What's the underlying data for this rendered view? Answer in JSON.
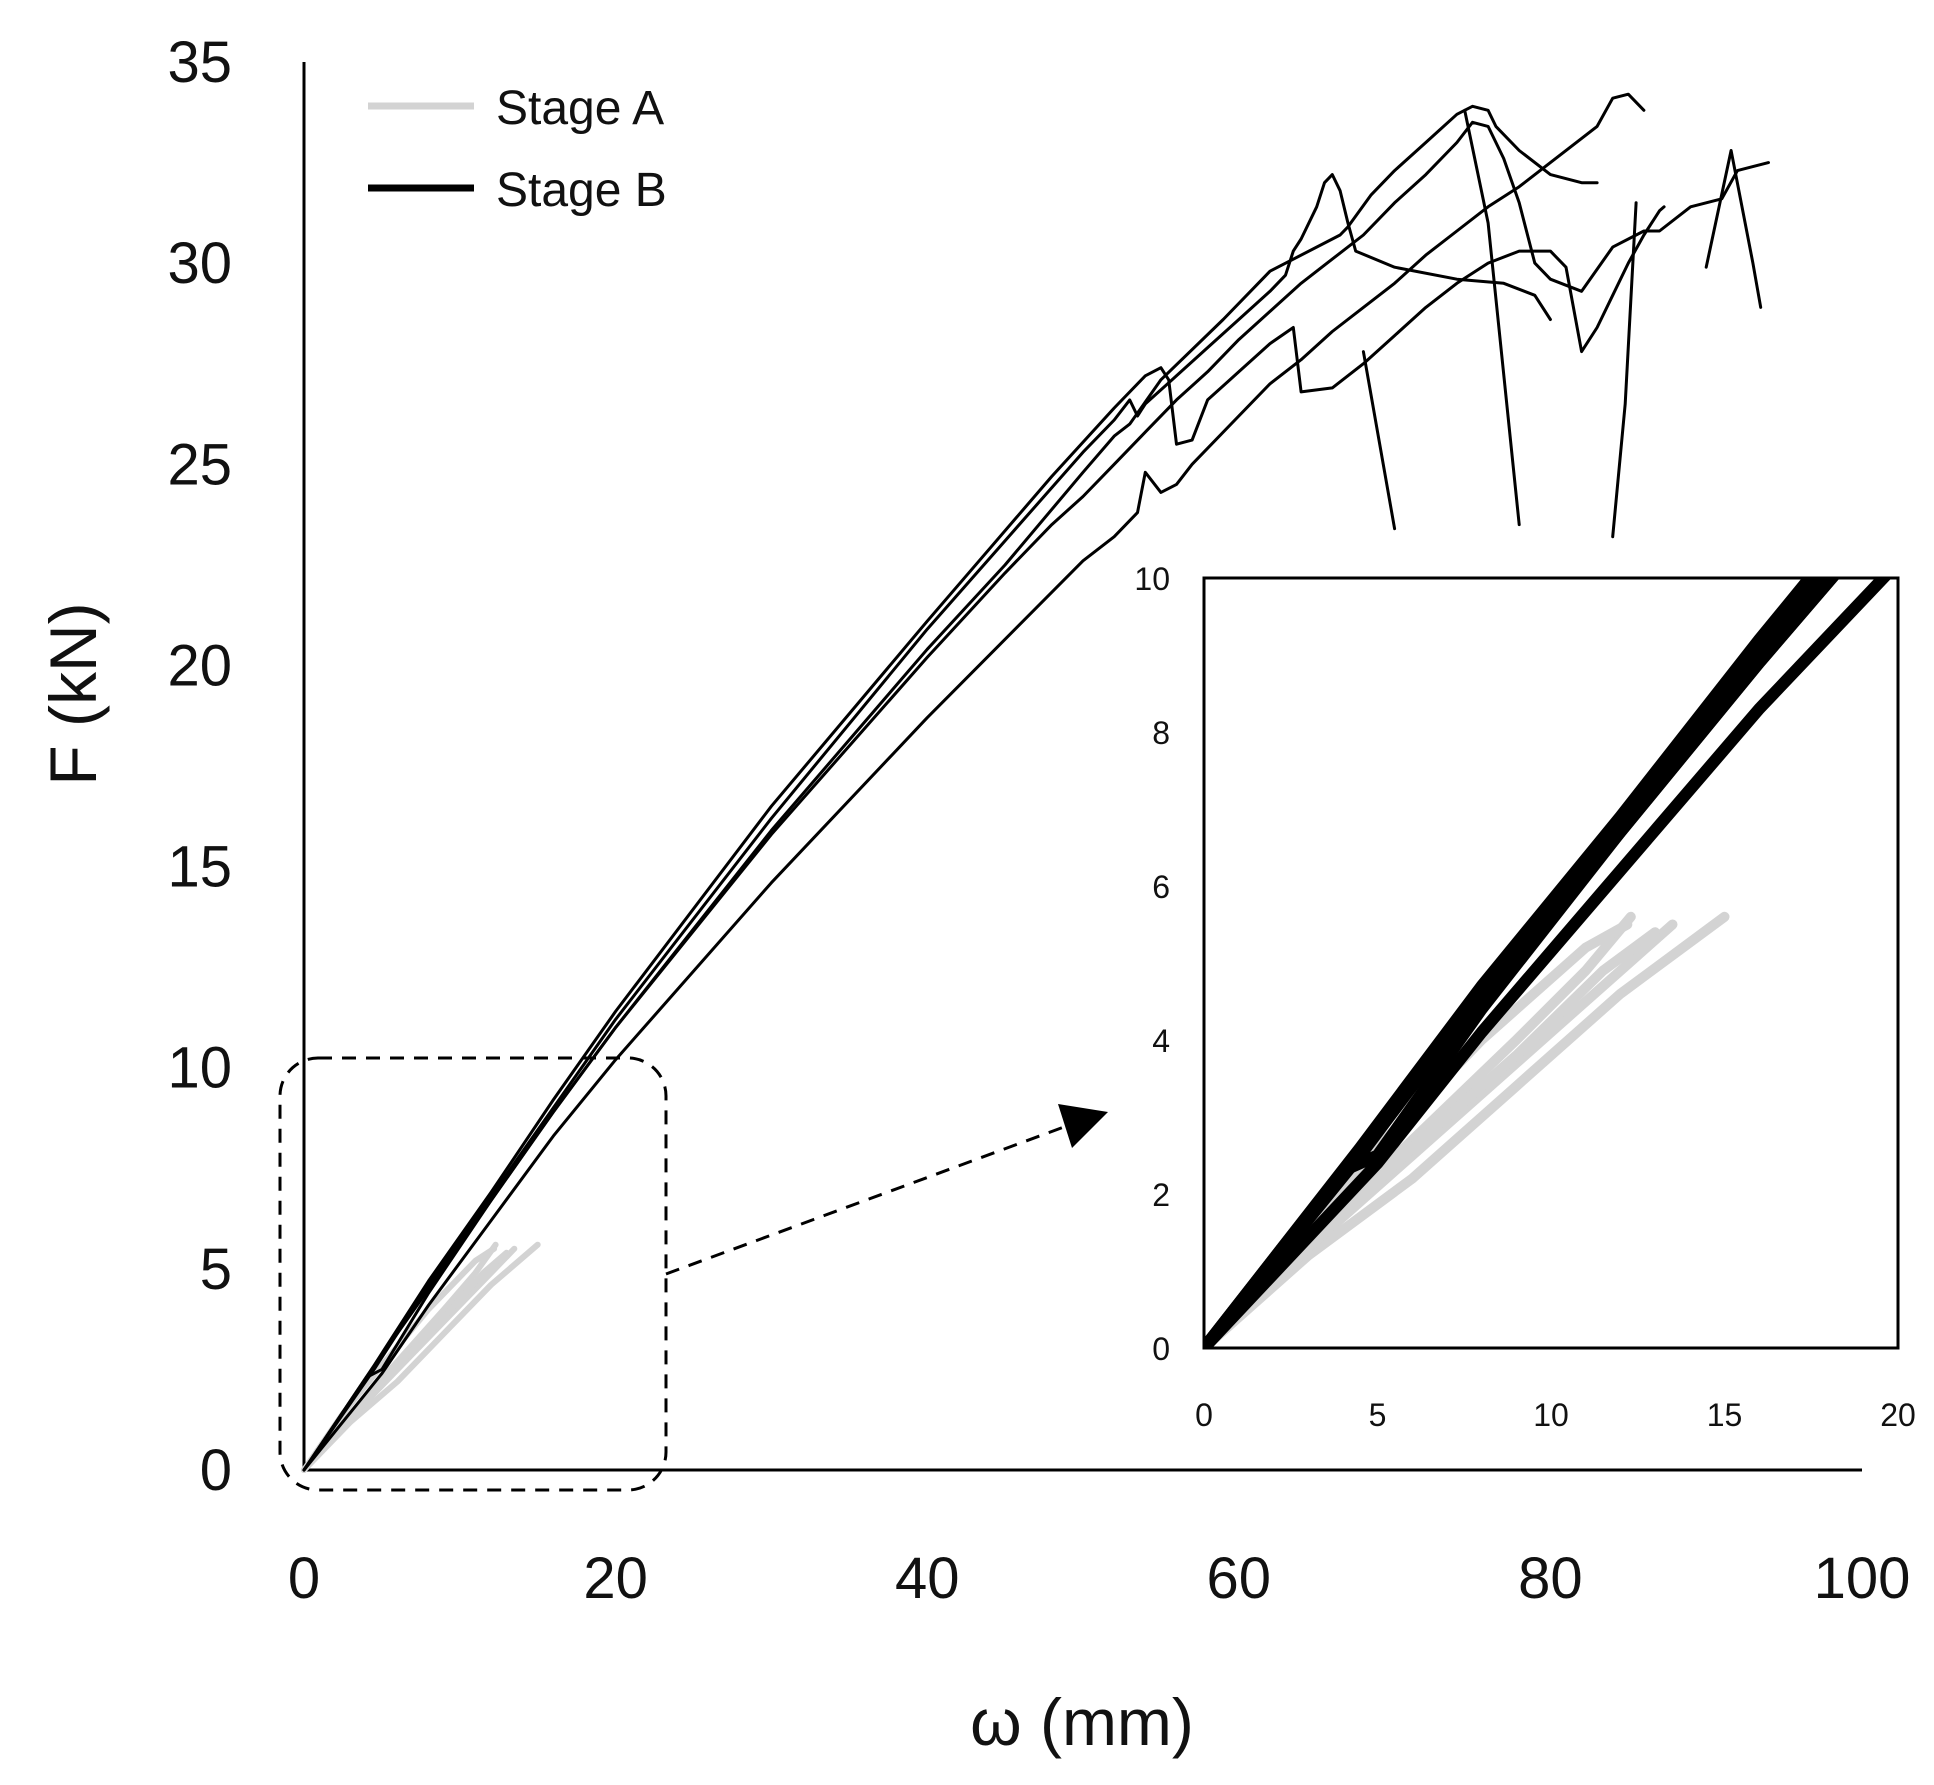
{
  "chart_data": {
    "type": "line",
    "title": "",
    "xlabel": "ω (mm)",
    "ylabel": "F (kN)",
    "xlim": [
      0,
      100
    ],
    "ylim": [
      0,
      35
    ],
    "x_ticks": [
      "0",
      "20",
      "40",
      "60",
      "80",
      "100"
    ],
    "y_ticks": [
      "0",
      "5",
      "10",
      "15",
      "20",
      "25",
      "30",
      "35"
    ],
    "grid": false,
    "legend_position": "top-left",
    "legend": [
      {
        "label": "Stage A",
        "color": "#d3d3d3"
      },
      {
        "label": "Stage B",
        "color": "#000000"
      }
    ],
    "series": [
      {
        "name": "Stage A",
        "color": "#d3d3d3",
        "curves": [
          [
            [
              0,
              0
            ],
            [
              3,
              1.2
            ],
            [
              6,
              2.2
            ],
            [
              9,
              3.4
            ],
            [
              12,
              4.6
            ],
            [
              15,
              5.6
            ]
          ],
          [
            [
              0,
              0
            ],
            [
              3,
              1.3
            ],
            [
              6,
              2.5
            ],
            [
              9,
              3.7
            ],
            [
              12,
              4.9
            ],
            [
              13.5,
              5.5
            ]
          ],
          [
            [
              0,
              0
            ],
            [
              3,
              1.4
            ],
            [
              6,
              2.7
            ],
            [
              9,
              4.0
            ],
            [
              11,
              4.9
            ],
            [
              12.3,
              5.6
            ]
          ],
          [
            [
              0,
              0
            ],
            [
              2.5,
              1.4
            ],
            [
              5,
              2.6
            ],
            [
              8,
              4.0
            ],
            [
              11,
              5.2
            ],
            [
              12.2,
              5.5
            ]
          ],
          [
            [
              0,
              0
            ],
            [
              3,
              1.3
            ],
            [
              6,
              2.6
            ],
            [
              9,
              3.8
            ],
            [
              11.5,
              4.9
            ],
            [
              13,
              5.4
            ]
          ]
        ]
      },
      {
        "name": "Stage B",
        "color": "#000000",
        "curves": [
          [
            [
              0,
              0
            ],
            [
              4,
              2.3
            ],
            [
              5,
              2.5
            ],
            [
              8,
              4.4
            ],
            [
              12,
              6.7
            ],
            [
              16,
              8.9
            ],
            [
              20,
              11.0
            ],
            [
              30,
              15.9
            ],
            [
              40,
              20.4
            ],
            [
              45,
              22.5
            ],
            [
              50,
              24.8
            ],
            [
              52,
              25.7
            ],
            [
              53,
              26.0
            ],
            [
              55,
              27.1
            ],
            [
              59,
              28.6
            ],
            [
              62,
              29.8
            ],
            [
              66.5,
              30.7
            ],
            [
              67,
              30.9
            ],
            [
              68.5,
              31.7
            ],
            [
              70,
              32.3
            ],
            [
              72,
              33.0
            ],
            [
              74,
              33.7
            ],
            [
              75,
              33.9
            ],
            [
              76,
              33.8
            ],
            [
              76.5,
              33.4
            ],
            [
              78,
              32.8
            ],
            [
              80,
              32.2
            ],
            [
              82,
              32.0
            ],
            [
              83,
              32.0
            ]
          ],
          [
            [
              0,
              0
            ],
            [
              4.5,
              2.5
            ],
            [
              8,
              4.6
            ],
            [
              12,
              6.8
            ],
            [
              16,
              9.0
            ],
            [
              20,
              11.2
            ],
            [
              30,
              16.2
            ],
            [
              40,
              20.9
            ],
            [
              45,
              23.1
            ],
            [
              50,
              25.3
            ],
            [
              52,
              26.1
            ],
            [
              53,
              26.6
            ],
            [
              53.5,
              26.2
            ],
            [
              54,
              26.5
            ],
            [
              56,
              27.2
            ],
            [
              58,
              27.9
            ],
            [
              60,
              28.6
            ],
            [
              62,
              29.3
            ],
            [
              63,
              29.7
            ],
            [
              63.5,
              30.3
            ],
            [
              64,
              30.6
            ],
            [
              65,
              31.4
            ],
            [
              65.5,
              32.0
            ],
            [
              66,
              32.2
            ],
            [
              66.5,
              31.8
            ],
            [
              67,
              31.0
            ],
            [
              67.5,
              30.3
            ],
            [
              70,
              29.9
            ],
            [
              74,
              29.6
            ],
            [
              77,
              29.5
            ],
            [
              79,
              29.2
            ],
            [
              80,
              28.6
            ]
          ],
          [
            [
              0,
              0
            ],
            [
              4,
              2.3
            ],
            [
              8,
              4.5
            ],
            [
              12,
              6.7
            ],
            [
              16,
              8.9
            ],
            [
              20,
              11.0
            ],
            [
              30,
              15.8
            ],
            [
              40,
              20.2
            ],
            [
              45,
              22.3
            ],
            [
              48,
              23.5
            ],
            [
              50,
              24.2
            ],
            [
              52,
              25.0
            ],
            [
              54,
              25.8
            ],
            [
              56,
              26.6
            ],
            [
              58,
              27.3
            ],
            [
              60,
              28.1
            ],
            [
              62,
              28.8
            ],
            [
              64,
              29.5
            ],
            [
              66,
              30.1
            ],
            [
              68,
              30.7
            ],
            [
              70,
              31.5
            ],
            [
              72,
              32.2
            ],
            [
              74,
              33.0
            ],
            [
              75,
              33.5
            ],
            [
              76,
              33.4
            ],
            [
              77,
              32.6
            ],
            [
              78,
              31.5
            ],
            [
              79,
              30.0
            ],
            [
              80,
              29.6
            ],
            [
              82,
              29.3
            ],
            [
              84,
              30.4
            ],
            [
              86,
              30.8
            ],
            [
              87,
              30.8
            ],
            [
              89,
              31.4
            ],
            [
              90,
              31.5
            ],
            [
              91,
              31.6
            ],
            [
              92,
              32.3
            ],
            [
              93,
              32.4
            ],
            [
              94,
              32.5
            ]
          ],
          [
            [
              0,
              0
            ],
            [
              5,
              2.4
            ],
            [
              8,
              4.1
            ],
            [
              12,
              6.2
            ],
            [
              16,
              8.3
            ],
            [
              20,
              10.2
            ],
            [
              30,
              14.6
            ],
            [
              40,
              18.7
            ],
            [
              50,
              22.6
            ],
            [
              52,
              23.2
            ],
            [
              53.5,
              23.8
            ],
            [
              54,
              24.8
            ],
            [
              55,
              24.3
            ],
            [
              56,
              24.5
            ],
            [
              57,
              25.0
            ],
            [
              60,
              26.2
            ],
            [
              62,
              27.0
            ],
            [
              64,
              27.6
            ],
            [
              66,
              28.3
            ],
            [
              68,
              28.9
            ],
            [
              70,
              29.5
            ],
            [
              72,
              30.2
            ],
            [
              74,
              30.8
            ],
            [
              76,
              31.4
            ],
            [
              78,
              31.9
            ],
            [
              80,
              32.5
            ],
            [
              82,
              33.1
            ],
            [
              83,
              33.4
            ],
            [
              84,
              34.1
            ],
            [
              85,
              34.2
            ],
            [
              86,
              33.8
            ]
          ],
          [
            [
              0,
              0
            ],
            [
              4.5,
              2.6
            ],
            [
              8,
              4.7
            ],
            [
              12,
              6.9
            ],
            [
              16,
              9.2
            ],
            [
              20,
              11.4
            ],
            [
              30,
              16.5
            ],
            [
              40,
              21.1
            ],
            [
              44,
              22.9
            ],
            [
              48,
              24.7
            ],
            [
              52,
              26.4
            ],
            [
              54,
              27.2
            ],
            [
              55,
              27.4
            ],
            [
              55.5,
              27.1
            ],
            [
              56,
              25.5
            ],
            [
              57,
              25.6
            ],
            [
              58,
              26.6
            ],
            [
              60,
              27.3
            ],
            [
              62,
              28.0
            ],
            [
              63.5,
              28.4
            ],
            [
              64,
              26.8
            ],
            [
              66,
              26.9
            ],
            [
              68,
              27.5
            ],
            [
              70,
              28.2
            ],
            [
              72,
              28.9
            ],
            [
              74,
              29.5
            ],
            [
              76,
              30.0
            ],
            [
              78,
              30.3
            ],
            [
              80,
              30.3
            ],
            [
              81,
              29.9
            ],
            [
              82,
              27.8
            ],
            [
              83,
              28.4
            ],
            [
              84,
              29.2
            ],
            [
              85,
              30.0
            ],
            [
              86,
              30.7
            ],
            [
              87,
              31.3
            ],
            [
              87.3,
              31.4
            ]
          ]
        ]
      },
      {
        "name": "Stage B failure drops",
        "color": "#000000",
        "curves": [
          [
            [
              74.5,
              33.8
            ],
            [
              76,
              31.0
            ],
            [
              78,
              23.5
            ]
          ],
          [
            [
              68,
              27.8
            ],
            [
              70,
              23.4
            ]
          ],
          [
            [
              90,
              29.9
            ],
            [
              91.6,
              32.8
            ],
            [
              93,
              30.0
            ],
            [
              93.5,
              28.9
            ]
          ],
          [
            [
              85.5,
              31.5
            ],
            [
              84.8,
              26.5
            ],
            [
              84,
              23.2
            ]
          ]
        ]
      }
    ],
    "inset": {
      "xlim": [
        0,
        20
      ],
      "ylim": [
        0,
        10
      ],
      "x_ticks": [
        "0",
        "5",
        "10",
        "15",
        "20"
      ],
      "y_ticks": [
        "0",
        "2",
        "4",
        "6",
        "8",
        "10"
      ]
    }
  }
}
